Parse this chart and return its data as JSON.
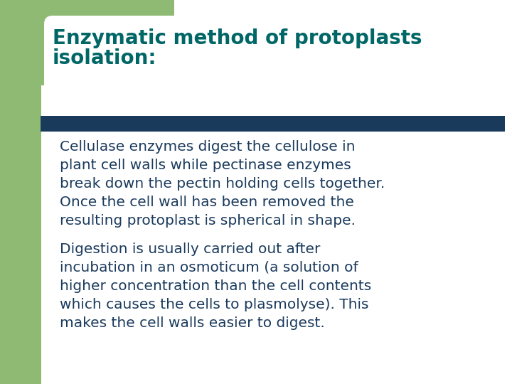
{
  "title_line1": "Enzymatic method of protoplasts",
  "title_line2": "isolation:",
  "title_color": "#006666",
  "title_fontsize": 20,
  "paragraph1_lines": [
    "Cellulase enzymes digest the cellulose in",
    "plant cell walls while pectinase enzymes",
    "break down the pectin holding cells together.",
    "Once the cell wall has been removed the",
    "resulting protoplast is spherical in shape."
  ],
  "paragraph2_lines": [
    "Digestion is usually carried out after",
    "incubation in an osmoticum (a solution of",
    "higher concentration than the cell contents",
    "which causes the cells to plasmolyse). This",
    "makes the cell walls easier to digest."
  ],
  "body_color": "#1a3a5c",
  "body_fontsize": 14.5,
  "background_color": "#ffffff",
  "left_bar_color": "#8fba74",
  "top_green_color": "#8fba74",
  "divider_color": "#1a3a5c",
  "white_color": "#ffffff",
  "fig_width": 7.2,
  "fig_height": 5.4,
  "dpi": 100
}
